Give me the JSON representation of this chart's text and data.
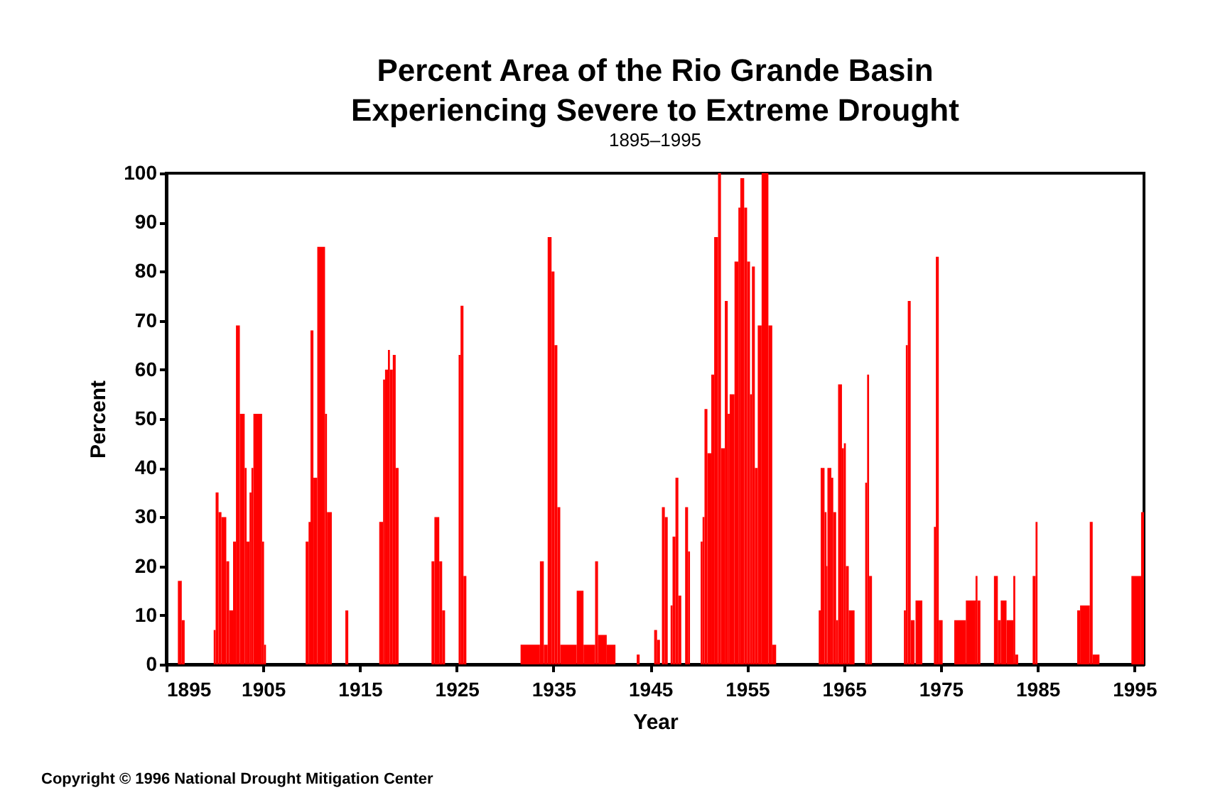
{
  "chart_data": {
    "type": "histogram",
    "title": "Percent Area of the Rio Grande Basin\nExperiencing Severe to Extreme Drought",
    "subtitle": "1895–1995",
    "xlabel": "Year",
    "ylabel": "Percent",
    "annotations": [
      "Copyright © 1996 National Drought Mitigation Center"
    ],
    "bins": [
      1896.2,
      1896.6,
      1896.9,
      1899.9,
      1900.1,
      1900.4,
      1900.7,
      1901.2,
      1901.5,
      1901.9,
      1902.2,
      1902.6,
      1903.1,
      1903.3,
      1903.6,
      1903.8,
      1904.0,
      1904.9,
      1905.1,
      1905.3,
      1909.4,
      1909.7,
      1909.9,
      1910.2,
      1910.6,
      1911.4,
      1911.6,
      1912.1,
      1913.5,
      1913.8,
      1917.0,
      1917.4,
      1917.6,
      1917.9,
      1918.1,
      1918.4,
      1918.7,
      1919.0,
      1922.4,
      1922.7,
      1923.2,
      1923.5,
      1923.8,
      1925.2,
      1925.4,
      1925.7,
      1926.0,
      1931.6,
      1933.6,
      1934.0,
      1934.4,
      1934.8,
      1935.1,
      1935.4,
      1935.7,
      1937.4,
      1938.1,
      1939.3,
      1939.6,
      1940.5,
      1941.4,
      1943.6,
      1943.9,
      1945.4,
      1945.7,
      1946.0,
      1946.2,
      1946.5,
      1946.8,
      1947.1,
      1947.3,
      1947.6,
      1947.9,
      1948.2,
      1948.6,
      1948.9,
      1949.1,
      1950.2,
      1950.4,
      1950.6,
      1950.9,
      1951.3,
      1951.6,
      1952.0,
      1952.3,
      1952.7,
      1953.0,
      1953.2,
      1953.7,
      1954.1,
      1954.3,
      1954.7,
      1955.0,
      1955.3,
      1955.5,
      1955.8,
      1956.1,
      1956.5,
      1957.2,
      1957.6,
      1958.0,
      1962.4,
      1962.6,
      1963.0,
      1963.2,
      1963.3,
      1963.7,
      1963.9,
      1964.2,
      1964.4,
      1964.8,
      1965.0,
      1965.2,
      1965.5,
      1966.1,
      1967.2,
      1967.4,
      1967.6,
      1967.9,
      1971.2,
      1971.4,
      1971.6,
      1971.9,
      1972.3,
      1972.4,
      1973.1,
      1974.3,
      1974.5,
      1974.8,
      1975.2,
      1976.4,
      1977.6,
      1978.6,
      1978.8,
      1979.1,
      1980.5,
      1980.9,
      1981.2,
      1981.8,
      1982.5,
      1982.7,
      1983.0,
      1984.5,
      1984.8,
      1985.0,
      1989.1,
      1989.4,
      1990.4,
      1990.7,
      1991.4,
      1994.7,
      1995.7,
      1996.0
    ],
    "values": [
      17,
      9,
      0,
      7,
      35,
      31,
      30,
      21,
      11,
      25,
      69,
      51,
      40,
      25,
      35,
      40,
      51,
      25,
      4,
      0,
      25,
      29,
      68,
      38,
      85,
      51,
      31,
      0,
      11,
      0,
      29,
      58,
      60,
      64,
      60,
      63,
      40,
      0,
      21,
      30,
      21,
      11,
      0,
      63,
      73,
      18,
      0,
      4,
      21,
      4,
      87,
      80,
      65,
      32,
      4,
      15,
      4,
      21,
      6,
      4,
      0,
      2,
      0,
      7,
      5,
      0,
      32,
      30,
      0,
      12,
      26,
      38,
      14,
      0,
      32,
      23,
      0,
      25,
      30,
      52,
      43,
      59,
      87,
      100,
      44,
      74,
      51,
      55,
      82,
      93,
      99,
      93,
      82,
      55,
      81,
      40,
      69,
      100,
      69,
      4,
      0,
      11,
      40,
      31,
      20,
      40,
      38,
      31,
      9,
      57,
      44,
      45,
      20,
      11,
      0,
      37,
      59,
      18,
      0,
      11,
      65,
      74,
      9,
      0,
      13,
      0,
      28,
      83,
      9,
      0,
      9,
      13,
      18,
      13,
      0,
      18,
      9,
      13,
      9,
      18,
      2,
      0,
      18,
      29,
      0,
      11,
      12,
      29,
      2,
      0,
      18,
      31
    ],
    "color": "#ff0000",
    "xlim": [
      1895,
      1996
    ],
    "xticks": [
      1895,
      1905,
      1915,
      1925,
      1935,
      1945,
      1955,
      1965,
      1975,
      1985,
      1995
    ],
    "ylim": [
      0,
      100
    ],
    "yticks": [
      0,
      10,
      20,
      30,
      40,
      50,
      60,
      70,
      80,
      90,
      100
    ],
    "grid": false
  }
}
